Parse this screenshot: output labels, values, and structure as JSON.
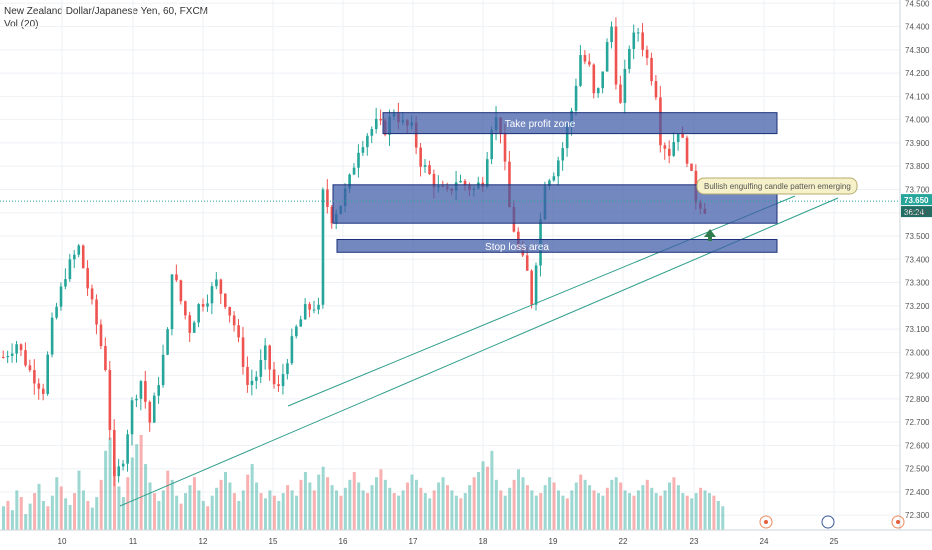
{
  "header": {
    "symbol_line": "New Zealand Dollar/Japanese Yen, 60, FXCM",
    "volume_line": "Vol (20)"
  },
  "chart_data": {
    "type": "candlestick",
    "y_axis": {
      "ticks": [
        "74.500",
        "74.400",
        "74.300",
        "74.200",
        "74.100",
        "74.000",
        "73.900",
        "73.800",
        "73.700",
        "73.600",
        "73.500",
        "73.400",
        "73.300",
        "73.200",
        "73.100",
        "73.000",
        "72.900",
        "72.800",
        "72.700",
        "72.600",
        "72.500",
        "72.400",
        "72.300"
      ],
      "range": [
        72.25,
        74.53
      ]
    },
    "x_axis": {
      "ticks": [
        "10",
        "11",
        "12",
        "15",
        "16",
        "17",
        "18",
        "19",
        "22",
        "23",
        "24",
        "25"
      ]
    },
    "current_price": {
      "label": "73.650",
      "value": 73.65,
      "countdown": "36:24"
    },
    "price_path": [
      [
        0,
        72.98
      ],
      [
        3,
        73.04
      ],
      [
        6,
        72.92
      ],
      [
        9,
        72.84
      ],
      [
        11,
        73.12
      ],
      [
        14,
        73.34
      ],
      [
        17,
        73.45
      ],
      [
        19,
        73.28
      ],
      [
        21,
        73.12
      ],
      [
        23,
        72.94
      ],
      [
        24,
        72.68
      ],
      [
        25,
        72.44
      ],
      [
        27,
        72.55
      ],
      [
        29,
        72.78
      ],
      [
        31,
        72.88
      ],
      [
        33,
        72.7
      ],
      [
        35,
        72.88
      ],
      [
        37,
        73.08
      ],
      [
        38,
        73.36
      ],
      [
        40,
        73.22
      ],
      [
        42,
        73.1
      ],
      [
        44,
        73.2
      ],
      [
        46,
        73.24
      ],
      [
        48,
        73.3
      ],
      [
        50,
        73.22
      ],
      [
        52,
        73.12
      ],
      [
        54,
        72.96
      ],
      [
        55,
        72.86
      ],
      [
        57,
        72.9
      ],
      [
        59,
        73.0
      ],
      [
        61,
        72.86
      ],
      [
        62,
        72.84
      ],
      [
        64,
        72.98
      ],
      [
        66,
        73.1
      ],
      [
        68,
        73.18
      ],
      [
        70,
        73.2
      ],
      [
        71,
        73.18
      ],
      [
        72,
        73.68
      ],
      [
        74,
        73.58
      ],
      [
        76,
        73.64
      ],
      [
        78,
        73.74
      ],
      [
        80,
        73.88
      ],
      [
        82,
        73.94
      ],
      [
        84,
        73.98
      ],
      [
        86,
        73.96
      ],
      [
        88,
        74.04
      ],
      [
        90,
        73.98
      ],
      [
        92,
        73.96
      ],
      [
        94,
        73.82
      ],
      [
        96,
        73.76
      ],
      [
        98,
        73.7
      ],
      [
        100,
        73.68
      ],
      [
        102,
        73.74
      ],
      [
        104,
        73.72
      ],
      [
        106,
        73.7
      ],
      [
        108,
        73.74
      ],
      [
        110,
        73.98
      ],
      [
        111,
        74.0
      ],
      [
        112,
        73.96
      ],
      [
        114,
        73.62
      ],
      [
        116,
        73.44
      ],
      [
        118,
        73.34
      ],
      [
        119,
        73.22
      ],
      [
        120,
        73.4
      ],
      [
        122,
        73.74
      ],
      [
        124,
        73.78
      ],
      [
        126,
        73.88
      ],
      [
        128,
        74.04
      ],
      [
        130,
        74.28
      ],
      [
        132,
        74.22
      ],
      [
        133,
        74.1
      ],
      [
        134,
        74.12
      ],
      [
        136,
        74.32
      ],
      [
        137,
        74.4
      ],
      [
        138,
        74.18
      ],
      [
        139,
        74.06
      ],
      [
        141,
        74.32
      ],
      [
        143,
        74.38
      ],
      [
        145,
        74.26
      ],
      [
        147,
        74.12
      ],
      [
        148,
        73.92
      ],
      [
        150,
        73.86
      ],
      [
        152,
        73.96
      ],
      [
        154,
        73.84
      ],
      [
        156,
        73.66
      ],
      [
        158,
        73.62
      ]
    ],
    "volume": [
      18,
      22,
      15,
      30,
      25,
      12,
      20,
      28,
      35,
      22,
      18,
      26,
      40,
      33,
      24,
      19,
      28,
      45,
      30,
      22,
      17,
      25,
      38,
      60,
      70,
      48,
      33,
      25,
      40,
      55,
      65,
      72,
      50,
      36,
      28,
      22,
      30,
      45,
      38,
      26,
      20,
      28,
      34,
      40,
      30,
      22,
      18,
      26,
      32,
      38,
      44,
      36,
      28,
      22,
      30,
      42,
      50,
      36,
      28,
      24,
      30,
      26,
      22,
      28,
      34,
      30,
      26,
      38,
      44,
      36,
      30,
      42,
      48,
      40,
      34,
      30,
      26,
      32,
      38,
      44,
      36,
      30,
      28,
      34,
      40,
      46,
      38,
      32,
      28,
      26,
      30,
      36,
      42,
      38,
      32,
      28,
      24,
      30,
      36,
      40,
      34,
      30,
      26,
      24,
      28,
      34,
      40,
      44,
      52,
      48,
      60,
      38,
      30,
      26,
      32,
      38,
      46,
      40,
      34,
      30,
      26,
      28,
      34,
      40,
      36,
      30,
      26,
      24,
      30,
      36,
      42,
      38,
      34,
      30,
      28,
      26,
      32,
      38,
      40,
      36,
      30,
      28,
      26,
      30,
      34,
      38,
      32,
      28,
      26,
      30,
      36,
      40,
      34,
      28,
      26,
      24,
      28,
      32,
      30,
      28,
      26,
      22,
      18
    ],
    "annotations": [
      {
        "label": "Take profit zone",
        "kind": "zone",
        "range": [
          73.94,
          74.03
        ]
      },
      {
        "label": "",
        "kind": "zone",
        "range": [
          73.555,
          73.72
        ]
      },
      {
        "label": "Stop loss area",
        "kind": "zone",
        "range": [
          73.43,
          73.485
        ]
      },
      {
        "label": "Bullish engulfing candle pattern emerging",
        "kind": "callout"
      }
    ],
    "colors": {
      "up": "#26a69a",
      "down": "#ef5350",
      "zone_fill": "#3f5aa8",
      "trendline": "#2e9d8a",
      "price_line": "#26a69a",
      "callout_bg": "#f6f1c8",
      "arrow": "#2f7d4f"
    },
    "grid": true
  }
}
